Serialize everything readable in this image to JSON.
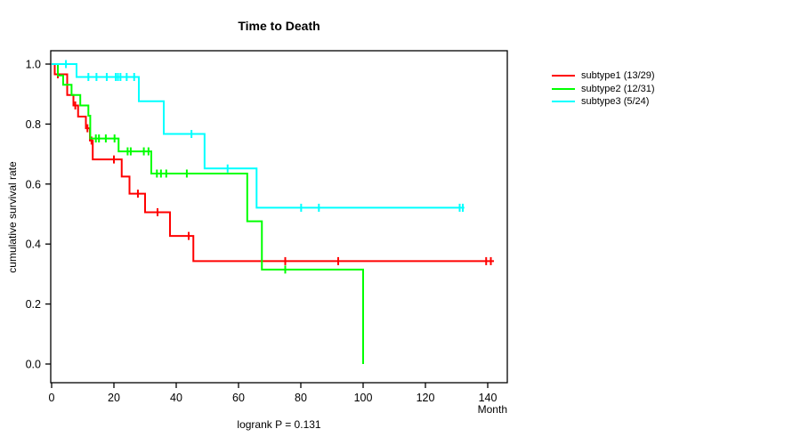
{
  "window": {
    "background": "#ffffff",
    "axis_color": "#000000"
  },
  "chart_data": {
    "type": "line",
    "variant": "kaplan-meier-step",
    "title": "Time to Death",
    "xlabel": "Month",
    "ylabel": "cumulative survival rate",
    "footnote": "logrank P = 0.131",
    "grid": false,
    "legend_position": "right-outside",
    "xlim": [
      0,
      146
    ],
    "ylim": [
      0,
      1
    ],
    "xticks": [
      0,
      20,
      40,
      60,
      80,
      100,
      120,
      140
    ],
    "xtick_labels": [
      "0",
      "20",
      "40",
      "60",
      "80",
      "100",
      "120",
      "140"
    ],
    "yticks": [
      0.0,
      0.2,
      0.4,
      0.6,
      0.8,
      1.0
    ],
    "ytick_labels": [
      "0.0",
      "0.2",
      "0.4",
      "0.6",
      "0.8",
      "1.0"
    ],
    "series": [
      {
        "name": "subtype1 (13/29)",
        "color": "#FF0000",
        "steps": [
          [
            0,
            1.0
          ],
          [
            1,
            0.966
          ],
          [
            5,
            0.897
          ],
          [
            7,
            0.862
          ],
          [
            8.5,
            0.825
          ],
          [
            11,
            0.786
          ],
          [
            12.3,
            0.745
          ],
          [
            13.2,
            0.682
          ],
          [
            22.5,
            0.625
          ],
          [
            25,
            0.568
          ],
          [
            30,
            0.506
          ],
          [
            38,
            0.427
          ],
          [
            45.5,
            0.343
          ],
          [
            142,
            0.343
          ]
        ],
        "censors": [
          [
            2,
            0.966
          ],
          [
            7.6,
            0.862
          ],
          [
            11.5,
            0.786
          ],
          [
            12.8,
            0.745
          ],
          [
            20,
            0.682
          ],
          [
            27.7,
            0.568
          ],
          [
            34,
            0.506
          ],
          [
            44,
            0.427
          ],
          [
            75,
            0.343
          ],
          [
            92,
            0.343
          ],
          [
            139.5,
            0.343
          ],
          [
            141,
            0.343
          ]
        ]
      },
      {
        "name": "subtype2 (12/31)",
        "color": "#00FF00",
        "steps": [
          [
            0,
            1.0
          ],
          [
            2,
            0.962
          ],
          [
            3.7,
            0.931
          ],
          [
            6.4,
            0.897
          ],
          [
            9.2,
            0.862
          ],
          [
            11.8,
            0.828
          ],
          [
            12.4,
            0.752
          ],
          [
            21.5,
            0.709
          ],
          [
            32,
            0.635
          ],
          [
            62.8,
            0.476
          ],
          [
            67.5,
            0.315
          ],
          [
            100,
            0.0
          ]
        ],
        "censors": [
          [
            14.2,
            0.752
          ],
          [
            15.2,
            0.752
          ],
          [
            17.4,
            0.752
          ],
          [
            20.2,
            0.752
          ],
          [
            24.4,
            0.709
          ],
          [
            25.4,
            0.709
          ],
          [
            29.6,
            0.709
          ],
          [
            31.1,
            0.709
          ],
          [
            33.8,
            0.635
          ],
          [
            35.1,
            0.635
          ],
          [
            36.8,
            0.635
          ],
          [
            43.4,
            0.635
          ],
          [
            75,
            0.315
          ]
        ]
      },
      {
        "name": "subtype3 (5/24)",
        "color": "#00FFFF",
        "steps": [
          [
            0,
            1.0
          ],
          [
            8,
            0.957
          ],
          [
            28,
            0.876
          ],
          [
            36,
            0.767
          ],
          [
            49.1,
            0.652
          ],
          [
            65.8,
            0.521
          ],
          [
            132.5,
            0.521
          ]
        ],
        "censors": [
          [
            4.6,
            1.0
          ],
          [
            11.8,
            0.957
          ],
          [
            14.4,
            0.957
          ],
          [
            17.7,
            0.957
          ],
          [
            20.6,
            0.957
          ],
          [
            21.3,
            0.957
          ],
          [
            22.1,
            0.957
          ],
          [
            24.1,
            0.957
          ],
          [
            26.5,
            0.957
          ],
          [
            44.9,
            0.767
          ],
          [
            56.5,
            0.652
          ],
          [
            80.1,
            0.521
          ],
          [
            85.8,
            0.521
          ],
          [
            131,
            0.521
          ],
          [
            132,
            0.521
          ]
        ]
      }
    ]
  }
}
